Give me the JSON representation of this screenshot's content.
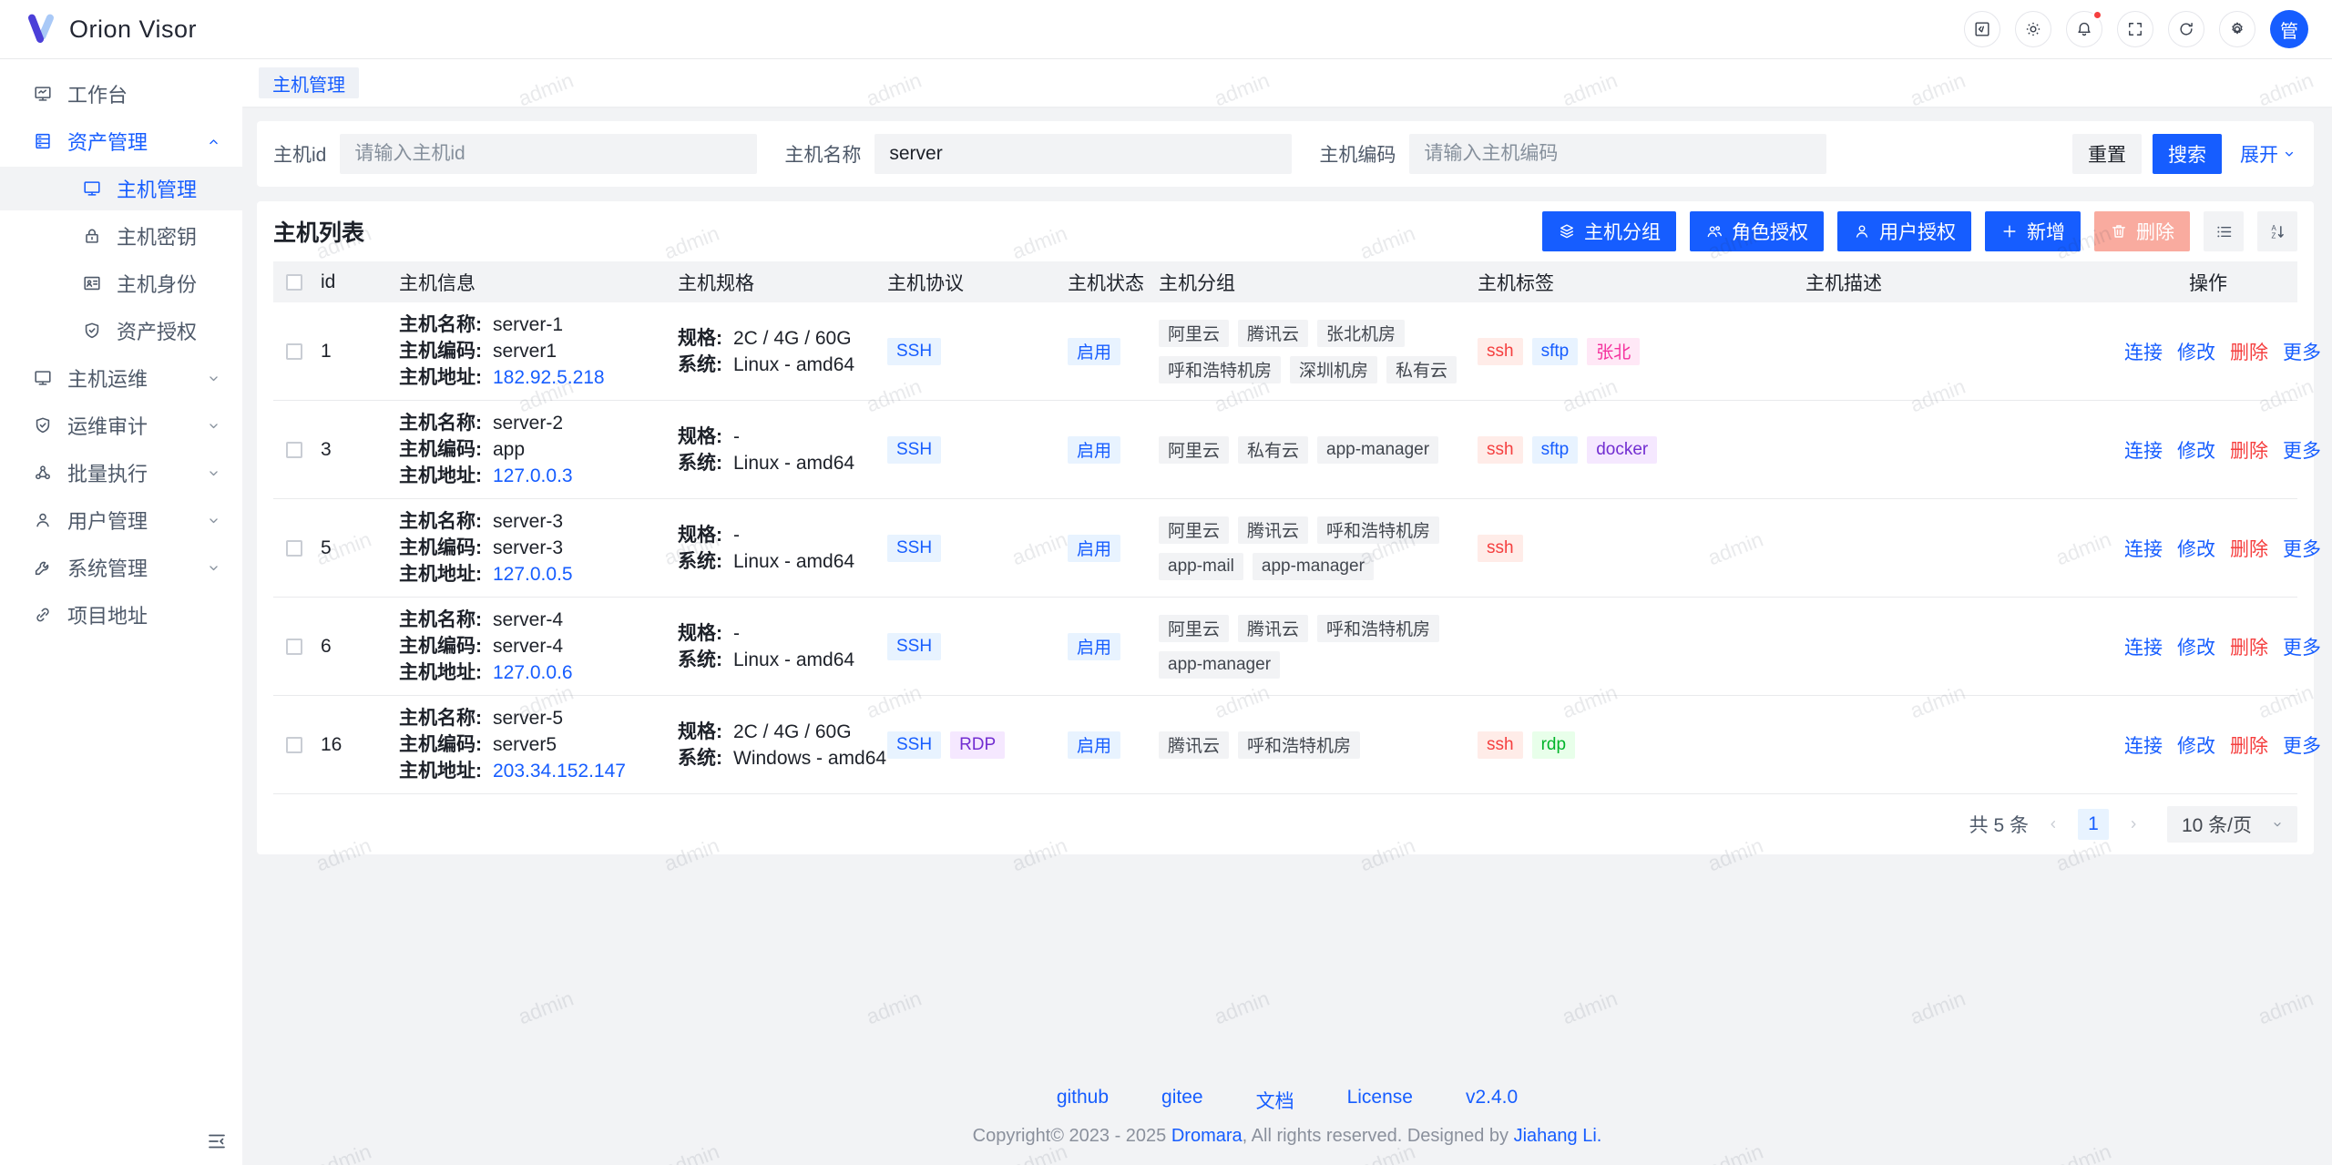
{
  "app": {
    "title": "Orion Visor",
    "avatar_text": "管"
  },
  "colors": {
    "accent": "#165dff",
    "danger": "#f53f3f",
    "tag_red_bg": "#ffece8",
    "tag_blue_bg": "#e8f3ff",
    "tag_purple_bg": "#f5e8ff",
    "tag_magenta_bg": "#ffe8f6",
    "tag_green_bg": "#e8ffea"
  },
  "watermark": {
    "text": "admin"
  },
  "header": {
    "buttons": [
      {
        "name": "devtools-button",
        "icon": "code-icon"
      },
      {
        "name": "theme-button",
        "icon": "sun-icon"
      },
      {
        "name": "notifications-button",
        "icon": "bell-icon",
        "badge": true
      },
      {
        "name": "fullscreen-button",
        "icon": "fullscreen-icon"
      },
      {
        "name": "refresh-button",
        "icon": "refresh-icon"
      },
      {
        "name": "settings-button",
        "icon": "gear-icon"
      }
    ]
  },
  "tabs": [
    {
      "label": "主机管理",
      "active": true
    }
  ],
  "sidebar": {
    "items": [
      {
        "name": "workbench",
        "label": "工作台",
        "icon": "dashboard-icon",
        "indent": false,
        "chevron": null,
        "selected": false,
        "highlight": false
      },
      {
        "name": "asset-management",
        "label": "资产管理",
        "icon": "assets-icon",
        "indent": false,
        "chevron": "up",
        "selected": false,
        "highlight": true
      },
      {
        "name": "host-management",
        "label": "主机管理",
        "icon": "monitor-icon",
        "indent": true,
        "chevron": null,
        "selected": true,
        "highlight": false
      },
      {
        "name": "host-keys",
        "label": "主机密钥",
        "icon": "lock-icon",
        "indent": true,
        "chevron": null,
        "selected": false,
        "highlight": false
      },
      {
        "name": "host-identity",
        "label": "主机身份",
        "icon": "idcard-icon",
        "indent": true,
        "chevron": null,
        "selected": false,
        "highlight": false
      },
      {
        "name": "asset-authorization",
        "label": "资产授权",
        "icon": "shield-icon",
        "indent": true,
        "chevron": null,
        "selected": false,
        "highlight": false
      },
      {
        "name": "host-ops",
        "label": "主机运维",
        "icon": "monitor-icon",
        "indent": false,
        "chevron": "down",
        "selected": false,
        "highlight": false
      },
      {
        "name": "ops-audit",
        "label": "运维审计",
        "icon": "shield-icon",
        "indent": false,
        "chevron": "down",
        "selected": false,
        "highlight": false
      },
      {
        "name": "batch-execution",
        "label": "批量执行",
        "icon": "cluster-icon",
        "indent": false,
        "chevron": "down",
        "selected": false,
        "highlight": false
      },
      {
        "name": "user-management",
        "label": "用户管理",
        "icon": "user-icon",
        "indent": false,
        "chevron": "down",
        "selected": false,
        "highlight": false
      },
      {
        "name": "system-management",
        "label": "系统管理",
        "icon": "wrench-icon",
        "indent": false,
        "chevron": "down",
        "selected": false,
        "highlight": false
      },
      {
        "name": "project-url",
        "label": "项目地址",
        "icon": "link-icon",
        "indent": false,
        "chevron": null,
        "selected": false,
        "highlight": false
      }
    ]
  },
  "search": {
    "fields": [
      {
        "name": "host-id-input",
        "label": "主机id",
        "value": "",
        "placeholder": "请输入主机id"
      },
      {
        "name": "host-name-input",
        "label": "主机名称",
        "value": "server",
        "placeholder": ""
      },
      {
        "name": "host-code-input",
        "label": "主机编码",
        "value": "",
        "placeholder": "请输入主机编码"
      }
    ],
    "reset_label": "重置",
    "search_label": "搜索",
    "expand_label": "展开"
  },
  "table": {
    "title": "主机列表",
    "toolbar": [
      {
        "name": "host-group-button",
        "label": "主机分组",
        "icon": "layers-icon",
        "variant": "primary"
      },
      {
        "name": "role-grant-button",
        "label": "角色授权",
        "icon": "user-group-icon",
        "variant": "primary"
      },
      {
        "name": "user-grant-button",
        "label": "用户授权",
        "icon": "user-icon",
        "variant": "primary"
      },
      {
        "name": "add-button",
        "label": "新增",
        "icon": "plus-icon",
        "variant": "primary"
      },
      {
        "name": "delete-button",
        "label": "删除",
        "icon": "trash-icon",
        "variant": "danger"
      }
    ],
    "icon_buttons": [
      {
        "name": "list-view-button",
        "icon": "list-view-icon"
      },
      {
        "name": "sort-button",
        "icon": "sort-icon"
      }
    ],
    "columns": [
      "id",
      "主机信息",
      "主机规格",
      "主机协议",
      "主机状态",
      "主机分组",
      "主机标签",
      "主机描述",
      "操作"
    ],
    "info_labels": {
      "name": "主机名称:",
      "code": "主机编码:",
      "address": "主机地址:"
    },
    "spec_labels": {
      "spec": "规格:",
      "system": "系统:"
    },
    "actions": [
      {
        "label": "连接",
        "color": "blue"
      },
      {
        "label": "修改",
        "color": "blue"
      },
      {
        "label": "删除",
        "color": "red"
      },
      {
        "label": "更多",
        "color": "blue"
      }
    ],
    "rows": [
      {
        "id": "1",
        "name": "server-1",
        "code": "server1",
        "address": "182.92.5.218",
        "spec": "2C / 4G / 60G",
        "system": "Linux - amd64",
        "protocols": [
          {
            "text": "SSH",
            "color": "blue"
          }
        ],
        "status": "启用",
        "groups": [
          "阿里云",
          "腾讯云",
          "张北机房",
          "呼和浩特机房",
          "深圳机房",
          "私有云"
        ],
        "tags": [
          {
            "text": "ssh",
            "color": "red"
          },
          {
            "text": "sftp",
            "color": "blue"
          },
          {
            "text": "张北",
            "color": "magenta"
          }
        ],
        "description": ""
      },
      {
        "id": "3",
        "name": "server-2",
        "code": "app",
        "address": "127.0.0.3",
        "spec": "-",
        "system": "Linux - amd64",
        "protocols": [
          {
            "text": "SSH",
            "color": "blue"
          }
        ],
        "status": "启用",
        "groups": [
          "阿里云",
          "私有云",
          "app-manager"
        ],
        "tags": [
          {
            "text": "ssh",
            "color": "red"
          },
          {
            "text": "sftp",
            "color": "blue"
          },
          {
            "text": "docker",
            "color": "purple"
          }
        ],
        "description": ""
      },
      {
        "id": "5",
        "name": "server-3",
        "code": "server-3",
        "address": "127.0.0.5",
        "spec": "-",
        "system": "Linux - amd64",
        "protocols": [
          {
            "text": "SSH",
            "color": "blue"
          }
        ],
        "status": "启用",
        "groups": [
          "阿里云",
          "腾讯云",
          "呼和浩特机房",
          "app-mail",
          "app-manager"
        ],
        "tags": [
          {
            "text": "ssh",
            "color": "red"
          }
        ],
        "description": ""
      },
      {
        "id": "6",
        "name": "server-4",
        "code": "server-4",
        "address": "127.0.0.6",
        "spec": "-",
        "system": "Linux - amd64",
        "protocols": [
          {
            "text": "SSH",
            "color": "blue"
          }
        ],
        "status": "启用",
        "groups": [
          "阿里云",
          "腾讯云",
          "呼和浩特机房",
          "app-manager"
        ],
        "tags": [],
        "description": ""
      },
      {
        "id": "16",
        "name": "server-5",
        "code": "server5",
        "address": "203.34.152.147",
        "spec": "2C / 4G / 60G",
        "system": "Windows - amd64",
        "protocols": [
          {
            "text": "SSH",
            "color": "blue"
          },
          {
            "text": "RDP",
            "color": "purple"
          }
        ],
        "status": "启用",
        "groups": [
          "腾讯云",
          "呼和浩特机房"
        ],
        "tags": [
          {
            "text": "ssh",
            "color": "red"
          },
          {
            "text": "rdp",
            "color": "green"
          }
        ],
        "description": ""
      }
    ]
  },
  "pagination": {
    "total": "共 5 条",
    "current": "1",
    "page_size": "10 条/页"
  },
  "footer": {
    "links": [
      "github",
      "gitee",
      "文档",
      "License",
      "v2.4.0"
    ],
    "copyright_prefix": "Copyright© 2023 - 2025 ",
    "copyright_brand": "Dromara",
    "copyright_middle": ", All rights reserved. Designed by ",
    "copyright_author": "Jiahang Li."
  }
}
